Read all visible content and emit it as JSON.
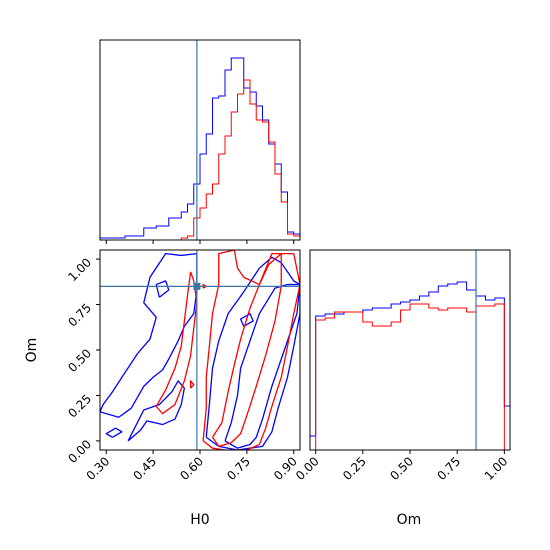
{
  "chart_data": {
    "type": "corner",
    "colors": {
      "series_a": "#0000ff",
      "series_b": "#ff0000",
      "truth": "#3a77a8",
      "frame": "#000000"
    },
    "parameters": [
      "H0",
      "Om"
    ],
    "truth": {
      "H0": 0.59,
      "Om": 0.85
    },
    "panels": {
      "h0_hist": {
        "type": "step-histogram",
        "xlim": [
          0.28,
          0.92
        ],
        "ylim": [
          0,
          1.0
        ],
        "series": [
          {
            "color_key": "series_a",
            "edges": [
              0.28,
              0.3,
              0.32,
              0.34,
              0.36,
              0.38,
              0.4,
              0.42,
              0.44,
              0.46,
              0.48,
              0.5,
              0.52,
              0.54,
              0.56,
              0.58,
              0.6,
              0.62,
              0.64,
              0.66,
              0.68,
              0.7,
              0.72,
              0.74,
              0.76,
              0.78,
              0.8,
              0.82,
              0.84,
              0.86,
              0.88,
              0.9,
              0.92
            ],
            "values": [
              0.01,
              0.01,
              0.01,
              0.01,
              0.02,
              0.02,
              0.02,
              0.06,
              0.06,
              0.07,
              0.07,
              0.11,
              0.11,
              0.14,
              0.18,
              0.28,
              0.43,
              0.53,
              0.71,
              0.72,
              0.85,
              0.91,
              0.91,
              0.76,
              0.74,
              0.67,
              0.6,
              0.48,
              0.38,
              0.24,
              0.04,
              0.03
            ]
          },
          {
            "color_key": "series_b",
            "edges": [
              0.28,
              0.3,
              0.32,
              0.34,
              0.36,
              0.38,
              0.4,
              0.42,
              0.44,
              0.46,
              0.48,
              0.5,
              0.52,
              0.54,
              0.56,
              0.58,
              0.6,
              0.62,
              0.64,
              0.66,
              0.68,
              0.7,
              0.72,
              0.74,
              0.76,
              0.78,
              0.8,
              0.82,
              0.84,
              0.86,
              0.88,
              0.9,
              0.92
            ],
            "values": [
              0,
              0,
              0,
              0,
              0,
              0,
              0,
              0,
              0,
              0,
              0,
              0,
              0,
              0.01,
              0.02,
              0.11,
              0.16,
              0.23,
              0.28,
              0.43,
              0.52,
              0.64,
              0.73,
              0.8,
              0.68,
              0.6,
              0.59,
              0.49,
              0.33,
              0.19,
              0.03,
              0.02
            ]
          }
        ],
        "xticks": [
          0.3,
          0.45,
          0.6,
          0.75,
          0.9
        ]
      },
      "om_hist": {
        "type": "step-histogram",
        "xlim": [
          -0.03,
          1.03
        ],
        "ylim": [
          0,
          1.0
        ],
        "series": [
          {
            "color_key": "series_a",
            "edges": [
              -0.03,
              0.0,
              0.05,
              0.1,
              0.15,
              0.2,
              0.25,
              0.3,
              0.35,
              0.4,
              0.45,
              0.5,
              0.55,
              0.6,
              0.65,
              0.7,
              0.75,
              0.8,
              0.85,
              0.9,
              0.95,
              1.0,
              1.03
            ],
            "values": [
              0.07,
              0.67,
              0.68,
              0.68,
              0.69,
              0.69,
              0.7,
              0.71,
              0.71,
              0.73,
              0.74,
              0.75,
              0.77,
              0.79,
              0.82,
              0.83,
              0.84,
              0.8,
              0.77,
              0.75,
              0.76,
              0.22
            ]
          },
          {
            "color_key": "series_b",
            "edges": [
              -0.03,
              0.0,
              0.05,
              0.1,
              0.15,
              0.2,
              0.25,
              0.3,
              0.35,
              0.4,
              0.45,
              0.5,
              0.55,
              0.6,
              0.65,
              0.7,
              0.75,
              0.8,
              0.85,
              0.9,
              0.95,
              1.0,
              1.03
            ],
            "values": [
              0,
              0.65,
              0.66,
              0.69,
              0.69,
              0.69,
              0.64,
              0.62,
              0.62,
              0.64,
              0.7,
              0.73,
              0.73,
              0.71,
              0.7,
              0.71,
              0.71,
              0.69,
              0.72,
              0.72,
              0.73,
              0
            ]
          }
        ],
        "xticks": [
          0.0,
          0.25,
          0.5,
          0.75,
          1.0
        ]
      },
      "joint": {
        "type": "contour",
        "xlim": [
          0.28,
          0.92
        ],
        "ylim": [
          -0.05,
          1.05
        ],
        "xticks": [
          0.3,
          0.45,
          0.6,
          0.75,
          0.9
        ],
        "yticks": [
          0.0,
          0.25,
          0.5,
          0.75,
          1.0
        ],
        "contours": [
          {
            "color_key": "series_a",
            "points": [
              [
                0.68,
                0.0
              ],
              [
                0.7,
                0.1
              ],
              [
                0.72,
                0.25
              ],
              [
                0.73,
                0.4
              ],
              [
                0.76,
                0.55
              ],
              [
                0.79,
                0.7
              ],
              [
                0.84,
                0.84
              ],
              [
                0.88,
                0.86
              ],
              [
                0.92,
                0.86
              ],
              [
                0.91,
                0.7
              ],
              [
                0.87,
                0.5
              ],
              [
                0.83,
                0.3
              ],
              [
                0.8,
                0.12
              ],
              [
                0.78,
                0.02
              ],
              [
                0.76,
                -0.02
              ],
              [
                0.72,
                -0.04
              ],
              [
                0.68,
                0.0
              ]
            ]
          },
          {
            "color_key": "series_a",
            "points": [
              [
                0.62,
                0.02
              ],
              [
                0.63,
                0.2
              ],
              [
                0.64,
                0.4
              ],
              [
                0.66,
                0.55
              ],
              [
                0.69,
                0.7
              ],
              [
                0.74,
                0.82
              ],
              [
                0.79,
                0.95
              ],
              [
                0.83,
                1.01
              ],
              [
                0.86,
                0.98
              ],
              [
                0.88,
                0.93
              ],
              [
                0.9,
                0.88
              ],
              [
                0.92,
                0.86
              ],
              [
                0.92,
                0.7
              ],
              [
                0.9,
                0.52
              ],
              [
                0.88,
                0.35
              ],
              [
                0.85,
                0.18
              ],
              [
                0.83,
                0.05
              ],
              [
                0.8,
                -0.03
              ],
              [
                0.72,
                -0.05
              ],
              [
                0.66,
                -0.03
              ],
              [
                0.62,
                0.02
              ]
            ]
          },
          {
            "color_key": "series_a",
            "points": [
              [
                0.28,
                0.16
              ],
              [
                0.34,
                0.13
              ],
              [
                0.38,
                0.18
              ],
              [
                0.42,
                0.3
              ],
              [
                0.45,
                0.35
              ],
              [
                0.48,
                0.39
              ],
              [
                0.5,
                0.45
              ],
              [
                0.53,
                0.55
              ],
              [
                0.55,
                0.63
              ],
              [
                0.58,
                0.7
              ],
              [
                0.59,
                0.83
              ],
              [
                0.59,
                1.03
              ],
              [
                0.54,
                1.02
              ],
              [
                0.49,
                1.03
              ],
              [
                0.44,
                0.9
              ],
              [
                0.42,
                0.76
              ],
              [
                0.46,
                0.68
              ],
              [
                0.44,
                0.56
              ],
              [
                0.4,
                0.48
              ],
              [
                0.35,
                0.35
              ],
              [
                0.32,
                0.27
              ],
              [
                0.29,
                0.2
              ],
              [
                0.28,
                0.16
              ]
            ]
          },
          {
            "color_key": "series_a",
            "points": [
              [
                0.37,
                0.0
              ],
              [
                0.41,
                0.06
              ],
              [
                0.43,
                0.11
              ],
              [
                0.48,
                0.09
              ],
              [
                0.52,
                0.12
              ],
              [
                0.54,
                0.2
              ],
              [
                0.55,
                0.29
              ],
              [
                0.53,
                0.33
              ],
              [
                0.51,
                0.27
              ],
              [
                0.47,
                0.2
              ],
              [
                0.42,
                0.17
              ],
              [
                0.37,
                0.0
              ]
            ]
          },
          {
            "color_key": "series_a",
            "points": [
              [
                0.47,
                0.79
              ],
              [
                0.5,
                0.83
              ],
              [
                0.49,
                0.88
              ],
              [
                0.46,
                0.86
              ],
              [
                0.47,
                0.79
              ]
            ]
          },
          {
            "color_key": "series_a",
            "points": [
              [
                0.32,
                0.02
              ],
              [
                0.35,
                0.05
              ],
              [
                0.33,
                0.07
              ],
              [
                0.3,
                0.04
              ],
              [
                0.32,
                0.02
              ]
            ]
          },
          {
            "color_key": "series_a",
            "points": [
              [
                0.74,
                0.63
              ],
              [
                0.77,
                0.66
              ],
              [
                0.76,
                0.7
              ],
              [
                0.73,
                0.67
              ],
              [
                0.74,
                0.63
              ]
            ]
          },
          {
            "color_key": "series_b",
            "points": [
              [
                0.64,
                0.02
              ],
              [
                0.67,
                0.1
              ],
              [
                0.69,
                0.27
              ],
              [
                0.71,
                0.42
              ],
              [
                0.73,
                0.56
              ],
              [
                0.76,
                0.73
              ],
              [
                0.79,
                0.86
              ],
              [
                0.83,
                1.03
              ],
              [
                0.86,
                1.03
              ],
              [
                0.86,
                0.85
              ],
              [
                0.84,
                0.66
              ],
              [
                0.81,
                0.47
              ],
              [
                0.78,
                0.3
              ],
              [
                0.75,
                0.14
              ],
              [
                0.73,
                0.04
              ],
              [
                0.7,
                -0.01
              ],
              [
                0.66,
                -0.03
              ],
              [
                0.64,
                0.02
              ]
            ]
          },
          {
            "color_key": "series_b",
            "points": [
              [
                0.61,
                0.0
              ],
              [
                0.62,
                0.18
              ],
              [
                0.62,
                0.35
              ],
              [
                0.63,
                0.52
              ],
              [
                0.64,
                0.7
              ],
              [
                0.66,
                0.86
              ],
              [
                0.66,
                1.03
              ],
              [
                0.71,
                1.05
              ],
              [
                0.72,
                0.95
              ],
              [
                0.74,
                0.9
              ],
              [
                0.79,
                0.86
              ],
              [
                0.82,
                0.97
              ],
              [
                0.86,
                1.03
              ],
              [
                0.9,
                1.03
              ],
              [
                0.92,
                0.86
              ],
              [
                0.9,
                0.7
              ],
              [
                0.88,
                0.52
              ],
              [
                0.86,
                0.35
              ],
              [
                0.83,
                0.19
              ],
              [
                0.81,
                0.07
              ],
              [
                0.79,
                -0.02
              ],
              [
                0.75,
                -0.05
              ],
              [
                0.68,
                -0.05
              ],
              [
                0.64,
                -0.04
              ],
              [
                0.61,
                0.0
              ]
            ]
          },
          {
            "color_key": "series_b",
            "points": [
              [
                0.57,
                0.93
              ],
              [
                0.56,
                0.8
              ],
              [
                0.55,
                0.66
              ],
              [
                0.54,
                0.52
              ],
              [
                0.52,
                0.4
              ],
              [
                0.49,
                0.28
              ],
              [
                0.46,
                0.19
              ],
              [
                0.48,
                0.15
              ],
              [
                0.52,
                0.2
              ],
              [
                0.55,
                0.33
              ],
              [
                0.57,
                0.47
              ],
              [
                0.58,
                0.62
              ],
              [
                0.59,
                0.76
              ],
              [
                0.58,
                0.88
              ],
              [
                0.57,
                0.93
              ]
            ]
          },
          {
            "color_key": "series_b",
            "points": [
              [
                0.61,
                0.84
              ],
              [
                0.62,
                0.85
              ],
              [
                0.61,
                0.86
              ],
              [
                0.61,
                0.84
              ]
            ]
          },
          {
            "color_key": "series_b",
            "points": [
              [
                0.57,
                0.29
              ],
              [
                0.58,
                0.31
              ],
              [
                0.57,
                0.33
              ],
              [
                0.57,
                0.29
              ]
            ]
          }
        ]
      }
    },
    "xlabels": {
      "joint": "H0",
      "om_hist": "Om"
    },
    "ylabels": {
      "joint": "Om"
    },
    "tick_labels": {
      "h0": [
        "0.30",
        "0.45",
        "0.60",
        "0.75",
        "0.90"
      ],
      "om": [
        "0.00",
        "0.25",
        "0.50",
        "0.75",
        "1.00"
      ]
    }
  }
}
